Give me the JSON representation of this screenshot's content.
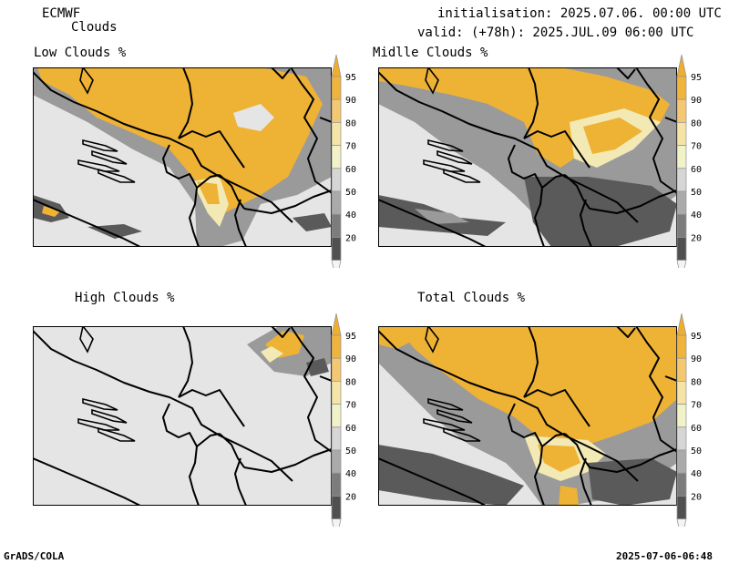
{
  "header": {
    "model": "ECMWF",
    "product": "Clouds",
    "init": "initialisation: 2025.07.06. 00:00 UTC",
    "valid": "valid: (+78h): 2025.JUL.09 06:00 UTC"
  },
  "panels": [
    {
      "title": "Low Clouds %"
    },
    {
      "title": "Midlle Clouds %"
    },
    {
      "title": "High Clouds %"
    },
    {
      "title": "Total Clouds %"
    }
  ],
  "colorbar": {
    "levels": [
      "95",
      "90",
      "80",
      "70",
      "60",
      "50",
      "40",
      "20"
    ],
    "colors": {
      "top": "#f0ae2c",
      "95": "#f0b43c",
      "90": "#f3c870",
      "80": "#f6e4a6",
      "70": "#f2f2c8",
      "60": "#d6d6d6",
      "50": "#aaaaaa",
      "40": "#7c7c7c",
      "20": "#505050",
      "bottom": "#f4f4f4"
    }
  },
  "map_colors": {
    "background": "#e5e5e5",
    "orange": "#eeb235",
    "light_yellow": "#f3e9b4",
    "dark": "#5a5a5a",
    "mid": "#9a9a9a",
    "border": "#000000"
  },
  "footer": {
    "left": "GrADS/COLA",
    "right": "2025-07-06-06:48"
  }
}
